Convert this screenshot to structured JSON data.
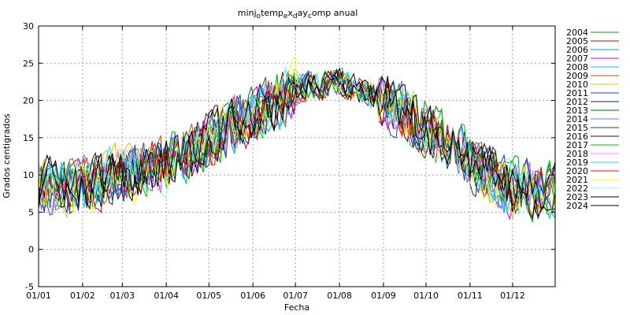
{
  "chart_data": {
    "type": "line",
    "title": "minjo_temp_e x_d ay_comp anual",
    "title_parts": {
      "t1": "minj",
      "s1": "o",
      "t2": "temp",
      "s2": "e",
      "t3": "x",
      "s3": "d",
      "t4": "ay",
      "s4": "c",
      "t5": "omp anual"
    },
    "xlabel": "Fecha",
    "ylabel": "Grados centigrados",
    "ylim": [
      -5,
      30
    ],
    "yticks": [
      "-5",
      "0",
      "5",
      "10",
      "15",
      "20",
      "25",
      "30"
    ],
    "xlim": [
      "01/01",
      "31/12"
    ],
    "xticks": [
      "01/01",
      "01/02",
      "01/03",
      "01/04",
      "01/05",
      "01/06",
      "01/07",
      "01/08",
      "01/09",
      "01/10",
      "01/11",
      "01/12"
    ],
    "grid": true,
    "legend_position": "right",
    "seasonal_profile": {
      "x": [
        "01/01",
        "01/02",
        "01/03",
        "01/04",
        "01/05",
        "01/06",
        "01/07",
        "01/08",
        "01/09",
        "01/10",
        "01/11",
        "01/12",
        "31/12"
      ],
      "y": [
        8.5,
        8.5,
        10,
        11.5,
        14.5,
        18,
        21.5,
        22.5,
        20,
        16.5,
        12,
        8,
        8
      ]
    },
    "series": [
      {
        "name": "2004",
        "color": "#00a000"
      },
      {
        "name": "2005",
        "color": "#e00000"
      },
      {
        "name": "2006",
        "color": "#00a0a0"
      },
      {
        "name": "2007",
        "color": "#c000ff"
      },
      {
        "name": "2008",
        "color": "#00c0ff"
      },
      {
        "name": "2009",
        "color": "#c05000"
      },
      {
        "name": "2010",
        "color": "#e0c000"
      },
      {
        "name": "2011",
        "color": "#2040c0"
      },
      {
        "name": "2012",
        "color": "#202020"
      },
      {
        "name": "2013",
        "color": "#007000"
      },
      {
        "name": "2014",
        "color": "#7070ff"
      },
      {
        "name": "2015",
        "color": "#104080"
      },
      {
        "name": "2016",
        "color": "#500010"
      },
      {
        "name": "2017",
        "color": "#00c000"
      },
      {
        "name": "2018",
        "color": "#ff80ff"
      },
      {
        "name": "2019",
        "color": "#20d0ff"
      },
      {
        "name": "2020",
        "color": "#ff0000"
      },
      {
        "name": "2021",
        "color": "#ffff00"
      },
      {
        "name": "2022",
        "color": "#80ffd0"
      },
      {
        "name": "2023",
        "color": "#000000"
      },
      {
        "name": "2024",
        "color": "#000000"
      }
    ]
  }
}
